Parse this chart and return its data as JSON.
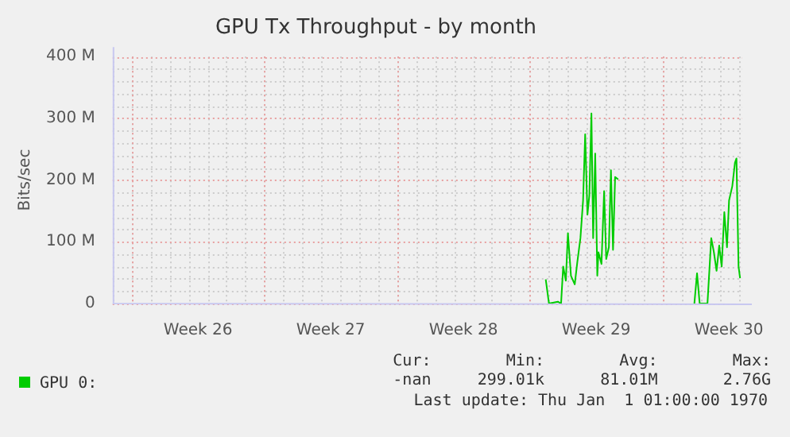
{
  "chart_data": {
    "type": "line",
    "title": "GPU Tx Throughput - by month",
    "ylabel": "Bits/sec",
    "x": [
      "--07-15T20:10",
      "--07-16T00:15",
      "--07-16T11:30",
      "--07-16T15:35",
      "--07-16T18:15",
      "--07-16T21:36",
      "--07-17T00:14",
      "--07-17T04:05",
      "--07-17T08:53",
      "--07-17T12:14",
      "--07-17T16:05",
      "--07-17T19:26",
      "--07-17T22:05",
      "--07-18T00:58",
      "--07-18T03:22",
      "--07-18T06:00",
      "--07-18T08:10",
      "--07-18T10:48",
      "--07-18T13:26",
      "--07-18T14:53",
      "--07-18T18:43",
      "--07-18T22:05",
      "--07-19T00:43",
      "--07-19T04:05",
      "--07-19T06:43",
      "--07-19T09:22",
      "--07-19T12:00",
      "--07-19T15:50",
      "--07-21T00:00",
      "--07-23T16:19",
      "--07-23T19:41",
      "--07-23T23:02",
      "--07-24T08:53",
      "--07-24T13:41",
      "--07-24T17:02",
      "--07-24T20:24",
      "--07-24T23:46",
      "--07-25T02:53",
      "--07-25T06:14",
      "--07-25T09:36",
      "--07-25T12:14",
      "--07-25T16:19",
      "--07-25T19:41",
      "--07-25T21:36",
      "--07-26T00:14",
      "--07-26T02:10"
    ],
    "series": [
      {
        "name": "GPU 0:",
        "color": "#00cc00",
        "values": [
          39,
          0,
          3,
          0,
          60,
          37,
          114,
          45,
          31,
          68,
          106,
          167,
          274,
          144,
          175,
          308,
          106,
          243,
          45,
          83,
          64,
          182,
          72,
          91,
          216,
          87,
          205,
          201,
          null,
          0,
          49,
          0,
          0,
          106,
          83,
          53,
          94,
          60,
          148,
          91,
          167,
          190,
          228,
          235,
          60,
          41
        ]
      }
    ],
    "xlim": [
      "--06-23T00:00",
      "--07-26T05:00"
    ],
    "xticks": [
      {
        "value": "--06-24T00:00",
        "label": null
      },
      {
        "value": "--06-27T12:00",
        "label": "Week 26"
      },
      {
        "value": "--07-01T00:00",
        "label": null
      },
      {
        "value": "--07-04T12:00",
        "label": "Week 27"
      },
      {
        "value": "--07-08T00:00",
        "label": null
      },
      {
        "value": "--07-11T12:00",
        "label": "Week 28"
      },
      {
        "value": "--07-15T00:00",
        "label": null
      },
      {
        "value": "--07-18T12:00",
        "label": "Week 29"
      },
      {
        "value": "--07-22T00:00",
        "label": null
      },
      {
        "value": "--07-25T12:00",
        "label": "Week 30"
      }
    ],
    "ylim": [
      0,
      400
    ],
    "yticks": [
      0,
      {
        "value": 100,
        "label": "100 M"
      },
      {
        "value": 200,
        "label": "200 M"
      },
      {
        "value": 300,
        "label": "300 M"
      },
      {
        "value": 400,
        "label": "400 M"
      }
    ],
    "grid": true,
    "legend": "bottom left",
    "marker": "none",
    "line_style": "solid",
    "annotations": [
      "Cur:",
      "Min:",
      "Avg:",
      "Max:",
      "-nan",
      "299.01k",
      "81.01M",
      "2.76G",
      "Last update: Thu Jan  1 01:00:00 1970"
    ]
  }
}
